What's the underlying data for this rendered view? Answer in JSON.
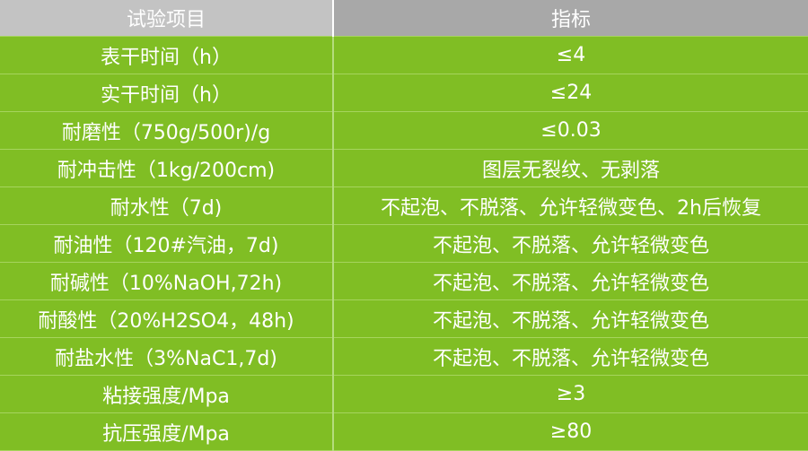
{
  "header": {
    "col1": "试验项目",
    "col2": "指标"
  },
  "rows": [
    {
      "item": "表干时间（h）",
      "value": "≤4"
    },
    {
      "item": "实干时间（h）",
      "value": "≤24"
    },
    {
      "item": "耐磨性（750g/500r)/g",
      "value": "≤0.03"
    },
    {
      "item": "耐冲击性（1kg/200cm)",
      "value": "图层无裂纹、无剥落"
    },
    {
      "item": "耐水性（7d)",
      "value": "不起泡、不脱落、允许轻微变色、2h后恢复"
    },
    {
      "item": "耐油性（120#汽油，7d)",
      "value": "不起泡、不脱落、允许轻微变色"
    },
    {
      "item": "耐碱性（10%NaOH,72h)",
      "value": "不起泡、不脱落、允许轻微变色"
    },
    {
      "item": "耐酸性（20%H2SO4，48h)",
      "value": "不起泡、不脱落、允许轻微变色"
    },
    {
      "item": "耐盐水性（3%NaC1,7d)",
      "value": "不起泡、不脱落、允许轻微变色"
    },
    {
      "item": "粘接强度/Mpa",
      "value": "≥3"
    },
    {
      "item": "抗压强度/Mpa",
      "value": "≥80"
    }
  ],
  "colors": {
    "header_left": "#c3c3c3",
    "header_right": "#a8a8a8",
    "row_bg": "#80be24"
  }
}
